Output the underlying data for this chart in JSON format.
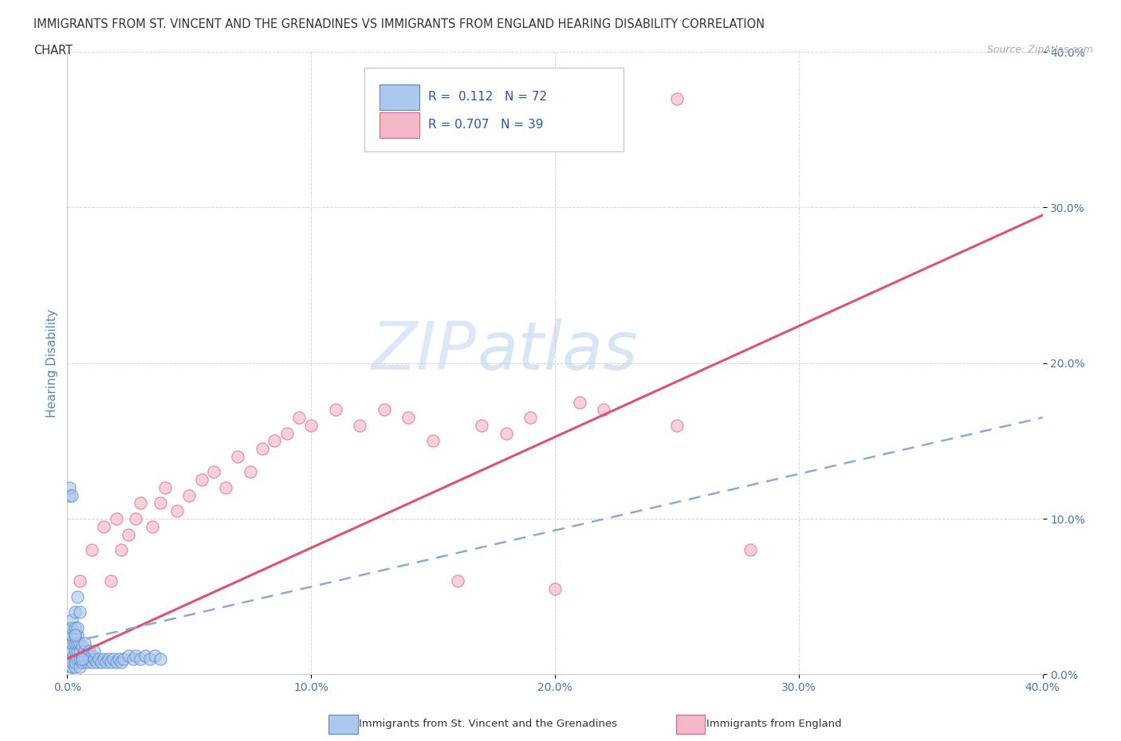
{
  "title_line1": "IMMIGRANTS FROM ST. VINCENT AND THE GRENADINES VS IMMIGRANTS FROM ENGLAND HEARING DISABILITY CORRELATION",
  "title_line2": "CHART",
  "source_text": "Source: ZipAtlas.com",
  "ylabel": "Hearing Disability",
  "xlim": [
    0.0,
    0.4
  ],
  "ylim": [
    0.0,
    0.4
  ],
  "xticks": [
    0.0,
    0.1,
    0.2,
    0.3,
    0.4
  ],
  "yticks": [
    0.0,
    0.1,
    0.2,
    0.3,
    0.4
  ],
  "xtick_labels": [
    "0.0%",
    "10.0%",
    "20.0%",
    "30.0%",
    "40.0%"
  ],
  "ytick_labels": [
    "0.0%",
    "10.0%",
    "20.0%",
    "30.0%",
    "40.0%"
  ],
  "watermark_1": "ZIP",
  "watermark_2": "atlas",
  "legend_r1_label": "R =  0.112",
  "legend_n1_label": "N = 72",
  "legend_r2_label": "R = 0.707",
  "legend_n2_label": "N = 39",
  "blue_fill": "#adc8ee",
  "blue_edge": "#5588cc",
  "pink_fill": "#f5b8c8",
  "pink_edge": "#e06080",
  "pink_line_color": "#e05070",
  "blue_line_color": "#88aadd",
  "background_color": "#ffffff",
  "grid_color": "#cccccc",
  "title_color": "#333333",
  "axis_color": "#5588bb",
  "tick_label_color": "#4477aa",
  "blue_scatter_x": [
    0.001,
    0.001,
    0.001,
    0.001,
    0.001,
    0.002,
    0.002,
    0.002,
    0.002,
    0.002,
    0.002,
    0.002,
    0.002,
    0.002,
    0.003,
    0.003,
    0.003,
    0.003,
    0.003,
    0.003,
    0.003,
    0.003,
    0.004,
    0.004,
    0.004,
    0.004,
    0.004,
    0.005,
    0.005,
    0.005,
    0.005,
    0.006,
    0.006,
    0.006,
    0.007,
    0.007,
    0.007,
    0.008,
    0.008,
    0.009,
    0.009,
    0.01,
    0.01,
    0.011,
    0.011,
    0.012,
    0.013,
    0.014,
    0.015,
    0.016,
    0.017,
    0.018,
    0.019,
    0.02,
    0.021,
    0.022,
    0.023,
    0.025,
    0.027,
    0.028,
    0.03,
    0.032,
    0.034,
    0.036,
    0.038,
    0.001,
    0.001,
    0.002,
    0.003,
    0.004,
    0.005,
    0.006
  ],
  "blue_scatter_y": [
    0.02,
    0.015,
    0.025,
    0.01,
    0.03,
    0.005,
    0.01,
    0.015,
    0.02,
    0.025,
    0.03,
    0.005,
    0.035,
    0.008,
    0.01,
    0.015,
    0.02,
    0.025,
    0.03,
    0.005,
    0.008,
    0.04,
    0.01,
    0.015,
    0.02,
    0.025,
    0.03,
    0.005,
    0.01,
    0.015,
    0.02,
    0.008,
    0.012,
    0.018,
    0.01,
    0.015,
    0.02,
    0.008,
    0.013,
    0.01,
    0.015,
    0.008,
    0.012,
    0.01,
    0.015,
    0.008,
    0.01,
    0.008,
    0.01,
    0.008,
    0.01,
    0.008,
    0.01,
    0.008,
    0.01,
    0.008,
    0.01,
    0.012,
    0.01,
    0.012,
    0.01,
    0.012,
    0.01,
    0.012,
    0.01,
    0.115,
    0.12,
    0.115,
    0.025,
    0.05,
    0.04,
    0.01
  ],
  "pink_scatter_x": [
    0.005,
    0.01,
    0.015,
    0.018,
    0.02,
    0.022,
    0.025,
    0.028,
    0.03,
    0.035,
    0.038,
    0.04,
    0.045,
    0.05,
    0.055,
    0.06,
    0.065,
    0.07,
    0.075,
    0.08,
    0.085,
    0.09,
    0.095,
    0.1,
    0.11,
    0.12,
    0.13,
    0.14,
    0.15,
    0.16,
    0.17,
    0.18,
    0.19,
    0.2,
    0.21,
    0.22,
    0.25,
    0.28,
    0.25
  ],
  "pink_scatter_y": [
    0.06,
    0.08,
    0.095,
    0.06,
    0.1,
    0.08,
    0.09,
    0.1,
    0.11,
    0.095,
    0.11,
    0.12,
    0.105,
    0.115,
    0.125,
    0.13,
    0.12,
    0.14,
    0.13,
    0.145,
    0.15,
    0.155,
    0.165,
    0.16,
    0.17,
    0.16,
    0.17,
    0.165,
    0.15,
    0.06,
    0.16,
    0.155,
    0.165,
    0.055,
    0.175,
    0.17,
    0.16,
    0.08,
    0.37
  ]
}
